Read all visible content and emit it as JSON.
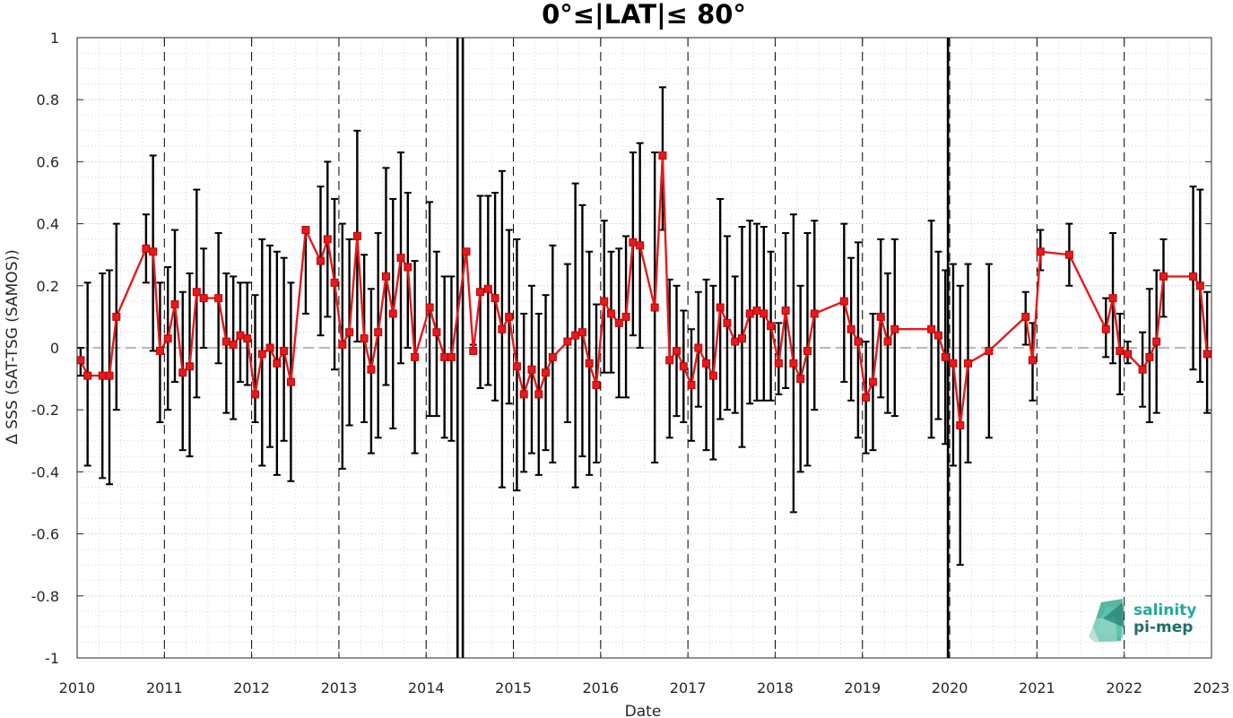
{
  "chart_data": {
    "type": "line",
    "title": "0°≤|LAT|≤ 80°",
    "xlabel": "Date",
    "ylabel": "Δ SSS (SAT-TSG (SAMOS))",
    "xlim": [
      2010.0,
      2023.0
    ],
    "ylim": [
      -1,
      1
    ],
    "x_ticks": [
      "2010",
      "2011",
      "2012",
      "2013",
      "2014",
      "2015",
      "2016",
      "2017",
      "2018",
      "2019",
      "2020",
      "2021",
      "2022",
      "2023"
    ],
    "y_ticks": [
      "-1",
      "-0.8",
      "-0.6",
      "-0.4",
      "-0.2",
      "0",
      "0.2",
      "0.4",
      "0.6",
      "0.8",
      "1"
    ],
    "grid": true,
    "zero_line": 0,
    "year_dashed_lines": [
      2011,
      2012,
      2013,
      2014,
      2015,
      2016,
      2017,
      2018,
      2019,
      2020,
      2021,
      2022
    ],
    "solid_vertical_lines": [
      2014.36,
      2014.42,
      2019.98
    ],
    "series_color": "#e41a1c",
    "errorbar_color": "#000000",
    "series": [
      {
        "x": [
          2010.04,
          2010.12,
          2010.29,
          2010.37,
          2010.45,
          2010.79,
          2010.87,
          2010.95,
          2011.04,
          2011.12,
          2011.21,
          2011.29,
          2011.37,
          2011.45,
          2011.62,
          2011.71,
          2011.79,
          2011.87,
          2011.95,
          2012.04,
          2012.12,
          2012.21,
          2012.29,
          2012.37,
          2012.45,
          2012.62,
          2012.79,
          2012.87,
          2012.95,
          2013.04,
          2013.12,
          2013.21,
          2013.29,
          2013.37,
          2013.45,
          2013.54,
          2013.62,
          2013.71,
          2013.79,
          2013.87,
          2014.04,
          2014.12,
          2014.21,
          2014.29,
          2014.46,
          2014.54,
          2014.62,
          2014.71,
          2014.79,
          2014.87,
          2014.95,
          2015.04,
          2015.12,
          2015.21,
          2015.29,
          2015.37,
          2015.45,
          2015.62,
          2015.71,
          2015.79,
          2015.87,
          2015.95,
          2016.04,
          2016.12,
          2016.21,
          2016.29,
          2016.37,
          2016.45,
          2016.62,
          2016.71,
          2016.79,
          2016.87,
          2016.95,
          2017.04,
          2017.12,
          2017.21,
          2017.29,
          2017.37,
          2017.45,
          2017.54,
          2017.62,
          2017.71,
          2017.79,
          2017.87,
          2017.95,
          2018.04,
          2018.12,
          2018.21,
          2018.29,
          2018.37,
          2018.45,
          2018.79,
          2018.87,
          2018.95,
          2019.04,
          2019.12,
          2019.21,
          2019.29,
          2019.37,
          2019.79,
          2019.87,
          2019.95,
          2020.04,
          2020.12,
          2020.21,
          2020.45,
          2020.87,
          2020.95,
          2021.04,
          2021.37,
          2021.79,
          2021.87,
          2021.95,
          2022.04,
          2022.21,
          2022.29,
          2022.37,
          2022.45,
          2022.79,
          2022.87,
          2022.95
        ],
        "values": [
          -0.04,
          -0.09,
          -0.09,
          -0.09,
          0.1,
          0.32,
          0.31,
          -0.01,
          0.03,
          0.14,
          -0.08,
          -0.06,
          0.18,
          0.16,
          0.16,
          0.02,
          0.01,
          0.04,
          0.03,
          -0.15,
          -0.02,
          0.0,
          -0.05,
          -0.01,
          -0.11,
          0.38,
          0.28,
          0.35,
          0.21,
          0.01,
          0.05,
          0.36,
          0.03,
          -0.07,
          0.05,
          0.23,
          0.11,
          0.29,
          0.26,
          -0.03,
          0.13,
          0.05,
          -0.03,
          -0.03,
          0.31,
          -0.01,
          0.18,
          0.19,
          0.16,
          0.06,
          0.1,
          -0.06,
          -0.15,
          -0.07,
          -0.15,
          -0.08,
          -0.03,
          0.02,
          0.04,
          0.05,
          -0.05,
          -0.12,
          0.15,
          0.11,
          0.08,
          0.1,
          0.34,
          0.33,
          0.13,
          0.62,
          -0.04,
          -0.01,
          -0.06,
          -0.12,
          0.0,
          -0.05,
          -0.09,
          0.13,
          0.08,
          0.02,
          0.03,
          0.11,
          0.12,
          0.11,
          0.07,
          -0.05,
          0.12,
          -0.05,
          -0.1,
          -0.01,
          0.11,
          0.15,
          0.06,
          0.02,
          -0.16,
          -0.11,
          0.1,
          0.02,
          0.06,
          0.06,
          0.04,
          -0.03,
          -0.05,
          -0.25,
          -0.05,
          -0.01,
          0.1,
          -0.04,
          0.31,
          0.3,
          0.06,
          0.16,
          -0.01,
          -0.02,
          -0.07,
          -0.03,
          0.02,
          0.23,
          0.23,
          0.2,
          -0.02
        ],
        "error_upper": [
          0.0,
          0.21,
          0.24,
          0.25,
          0.4,
          0.43,
          0.62,
          0.21,
          0.26,
          0.38,
          0.18,
          0.24,
          0.51,
          0.32,
          0.37,
          0.24,
          0.23,
          0.21,
          0.21,
          0.17,
          0.35,
          0.33,
          0.31,
          0.29,
          0.21,
          0.38,
          0.52,
          0.6,
          0.48,
          0.4,
          0.35,
          0.7,
          0.3,
          0.19,
          0.37,
          0.58,
          0.48,
          0.63,
          0.5,
          0.28,
          0.47,
          0.31,
          0.23,
          0.23,
          0.31,
          0.01,
          0.49,
          0.49,
          0.5,
          0.57,
          0.38,
          0.35,
          0.11,
          0.2,
          0.11,
          0.17,
          0.33,
          0.27,
          0.53,
          0.46,
          0.31,
          0.14,
          0.41,
          0.31,
          0.32,
          0.36,
          0.63,
          0.66,
          0.63,
          0.84,
          0.22,
          0.2,
          0.12,
          0.06,
          0.18,
          0.22,
          0.2,
          0.48,
          0.36,
          0.23,
          0.39,
          0.41,
          0.4,
          0.39,
          0.31,
          0.08,
          0.37,
          0.43,
          0.2,
          0.37,
          0.41,
          0.4,
          0.29,
          0.34,
          0.02,
          0.11,
          0.35,
          0.24,
          0.35,
          0.41,
          0.31,
          0.25,
          0.27,
          0.2,
          0.27,
          0.27,
          0.18,
          0.08,
          0.38,
          0.4,
          0.16,
          0.37,
          0.11,
          0.02,
          0.05,
          0.19,
          0.25,
          0.35,
          0.52,
          0.51,
          0.18
        ],
        "error_lower": [
          -0.09,
          -0.38,
          -0.42,
          -0.44,
          -0.2,
          0.21,
          -0.01,
          -0.24,
          -0.2,
          -0.11,
          -0.33,
          -0.35,
          -0.16,
          0.0,
          -0.05,
          -0.21,
          -0.23,
          -0.11,
          -0.12,
          -0.24,
          -0.38,
          -0.32,
          -0.41,
          -0.3,
          -0.43,
          0.11,
          0.04,
          0.1,
          -0.07,
          -0.39,
          -0.25,
          0.02,
          -0.24,
          -0.34,
          -0.29,
          -0.12,
          -0.26,
          -0.05,
          0.0,
          -0.34,
          -0.22,
          -0.22,
          -0.29,
          -0.3,
          0.31,
          -0.01,
          -0.13,
          -0.12,
          -0.17,
          -0.45,
          -0.18,
          -0.46,
          -0.4,
          -0.34,
          -0.41,
          -0.33,
          -0.37,
          -0.24,
          -0.45,
          -0.35,
          -0.41,
          -0.37,
          -0.08,
          -0.08,
          -0.16,
          -0.16,
          0.04,
          0.0,
          -0.37,
          0.38,
          -0.29,
          -0.22,
          -0.24,
          -0.3,
          -0.19,
          -0.33,
          -0.36,
          -0.23,
          -0.2,
          -0.21,
          -0.32,
          -0.18,
          -0.17,
          -0.17,
          -0.17,
          -0.15,
          -0.13,
          -0.53,
          -0.4,
          -0.38,
          -0.2,
          -0.11,
          -0.17,
          -0.29,
          -0.34,
          -0.33,
          -0.16,
          -0.21,
          -0.22,
          -0.29,
          -0.23,
          -0.31,
          -0.38,
          -0.7,
          -0.37,
          -0.29,
          0.01,
          -0.17,
          0.25,
          0.2,
          -0.03,
          -0.05,
          -0.15,
          -0.05,
          -0.19,
          -0.24,
          -0.21,
          0.1,
          -0.07,
          -0.11,
          -0.21
        ]
      }
    ]
  },
  "logo": {
    "line1": "salinity",
    "line2": "pi-mep",
    "color_line1": "#23a99a",
    "color_line2": "#1f6f68"
  }
}
